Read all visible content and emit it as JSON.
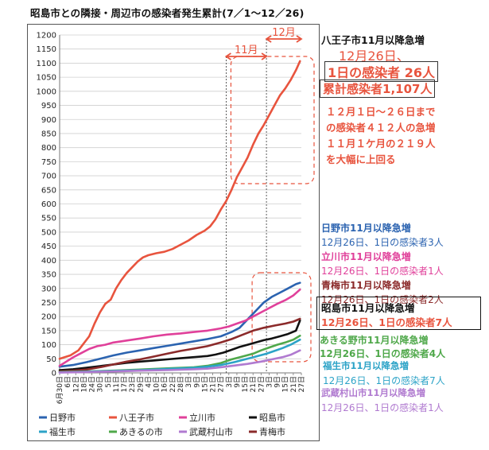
{
  "title": "昭島市との隣接・周辺市の感染者発生累計(7／1～12／26)",
  "chart_data": {
    "type": "line",
    "ylim": [
      0,
      1200
    ],
    "yticks": [
      0,
      50,
      100,
      150,
      200,
      250,
      300,
      350,
      400,
      450,
      500,
      550,
      600,
      650,
      700,
      750,
      800,
      850,
      900,
      950,
      1000,
      1050,
      1100,
      1150,
      1200
    ],
    "xlim": [
      0,
      180
    ],
    "x_tick_labels": [
      {
        "x": 0,
        "label": "6月30日"
      },
      {
        "x": 6,
        "label": "6日"
      },
      {
        "x": 12,
        "label": "12日"
      },
      {
        "x": 18,
        "label": "18日"
      },
      {
        "x": 24,
        "label": "24日"
      },
      {
        "x": 30,
        "label": "30日"
      },
      {
        "x": 36,
        "label": "5日"
      },
      {
        "x": 42,
        "label": "11日"
      },
      {
        "x": 48,
        "label": "17日"
      },
      {
        "x": 54,
        "label": "23日"
      },
      {
        "x": 60,
        "label": "29日"
      },
      {
        "x": 66,
        "label": "4日"
      },
      {
        "x": 72,
        "label": "10日"
      },
      {
        "x": 78,
        "label": "16日"
      },
      {
        "x": 84,
        "label": "22日"
      },
      {
        "x": 90,
        "label": "28日"
      },
      {
        "x": 96,
        "label": "3日"
      },
      {
        "x": 102,
        "label": "9日"
      },
      {
        "x": 108,
        "label": "15日"
      },
      {
        "x": 114,
        "label": "21日"
      },
      {
        "x": 120,
        "label": "27日"
      },
      {
        "x": 126,
        "label": "3日"
      },
      {
        "x": 132,
        "label": "9日"
      },
      {
        "x": 138,
        "label": "15日"
      },
      {
        "x": 144,
        "label": "21日"
      },
      {
        "x": 150,
        "label": "27日"
      },
      {
        "x": 156,
        "label": "3日"
      },
      {
        "x": 162,
        "label": "9日"
      },
      {
        "x": 168,
        "label": "15日"
      },
      {
        "x": 174,
        "label": "21日"
      },
      {
        "x": 180,
        "label": "27日"
      }
    ],
    "month_brackets": [
      {
        "label": "11月",
        "x_start": 124,
        "x_end": 154
      },
      {
        "label": "12月",
        "x_start": 154,
        "x_end": 180
      }
    ],
    "series": [
      {
        "name": "八王子市",
        "color": "#e8543e",
        "points": [
          [
            0,
            50
          ],
          [
            8,
            62
          ],
          [
            14,
            80
          ],
          [
            18,
            105
          ],
          [
            22,
            130
          ],
          [
            26,
            175
          ],
          [
            30,
            215
          ],
          [
            34,
            245
          ],
          [
            38,
            260
          ],
          [
            42,
            300
          ],
          [
            46,
            330
          ],
          [
            50,
            355
          ],
          [
            54,
            375
          ],
          [
            58,
            395
          ],
          [
            62,
            410
          ],
          [
            66,
            418
          ],
          [
            72,
            425
          ],
          [
            78,
            430
          ],
          [
            84,
            440
          ],
          [
            90,
            455
          ],
          [
            96,
            470
          ],
          [
            102,
            490
          ],
          [
            108,
            505
          ],
          [
            112,
            520
          ],
          [
            116,
            545
          ],
          [
            120,
            580
          ],
          [
            124,
            610
          ],
          [
            128,
            650
          ],
          [
            132,
            695
          ],
          [
            136,
            730
          ],
          [
            140,
            765
          ],
          [
            144,
            810
          ],
          [
            148,
            850
          ],
          [
            152,
            880
          ],
          [
            156,
            915
          ],
          [
            160,
            950
          ],
          [
            164,
            985
          ],
          [
            168,
            1010
          ],
          [
            172,
            1040
          ],
          [
            176,
            1075
          ],
          [
            179,
            1107
          ]
        ]
      },
      {
        "name": "日野市",
        "color": "#2b63b0",
        "points": [
          [
            0,
            22
          ],
          [
            10,
            28
          ],
          [
            20,
            38
          ],
          [
            30,
            50
          ],
          [
            40,
            62
          ],
          [
            50,
            72
          ],
          [
            60,
            80
          ],
          [
            70,
            88
          ],
          [
            80,
            96
          ],
          [
            90,
            104
          ],
          [
            100,
            112
          ],
          [
            110,
            120
          ],
          [
            120,
            130
          ],
          [
            128,
            145
          ],
          [
            134,
            160
          ],
          [
            140,
            190
          ],
          [
            146,
            220
          ],
          [
            152,
            250
          ],
          [
            158,
            270
          ],
          [
            164,
            285
          ],
          [
            170,
            300
          ],
          [
            176,
            315
          ],
          [
            179,
            320
          ]
        ]
      },
      {
        "name": "立川市",
        "color": "#e0409a",
        "points": [
          [
            0,
            25
          ],
          [
            5,
            40
          ],
          [
            10,
            55
          ],
          [
            16,
            70
          ],
          [
            22,
            85
          ],
          [
            28,
            95
          ],
          [
            34,
            100
          ],
          [
            40,
            108
          ],
          [
            50,
            115
          ],
          [
            60,
            122
          ],
          [
            70,
            130
          ],
          [
            80,
            136
          ],
          [
            90,
            140
          ],
          [
            100,
            145
          ],
          [
            110,
            150
          ],
          [
            120,
            158
          ],
          [
            126,
            165
          ],
          [
            132,
            175
          ],
          [
            138,
            185
          ],
          [
            144,
            200
          ],
          [
            150,
            215
          ],
          [
            156,
            230
          ],
          [
            162,
            245
          ],
          [
            168,
            258
          ],
          [
            174,
            275
          ],
          [
            179,
            296
          ]
        ]
      },
      {
        "name": "昭島市",
        "color": "#111111",
        "points": [
          [
            0,
            10
          ],
          [
            10,
            13
          ],
          [
            20,
            18
          ],
          [
            30,
            24
          ],
          [
            40,
            30
          ],
          [
            50,
            36
          ],
          [
            60,
            40
          ],
          [
            70,
            44
          ],
          [
            80,
            48
          ],
          [
            90,
            52
          ],
          [
            100,
            56
          ],
          [
            110,
            60
          ],
          [
            116,
            65
          ],
          [
            122,
            72
          ],
          [
            128,
            82
          ],
          [
            134,
            92
          ],
          [
            140,
            100
          ],
          [
            146,
            108
          ],
          [
            152,
            116
          ],
          [
            158,
            122
          ],
          [
            164,
            130
          ],
          [
            170,
            138
          ],
          [
            176,
            150
          ],
          [
            179,
            186
          ]
        ]
      },
      {
        "name": "青梅市",
        "color": "#8b2a2a",
        "points": [
          [
            0,
            5
          ],
          [
            10,
            8
          ],
          [
            20,
            12
          ],
          [
            30,
            20
          ],
          [
            40,
            30
          ],
          [
            50,
            40
          ],
          [
            60,
            48
          ],
          [
            70,
            58
          ],
          [
            80,
            68
          ],
          [
            90,
            78
          ],
          [
            100,
            86
          ],
          [
            110,
            95
          ],
          [
            120,
            108
          ],
          [
            128,
            120
          ],
          [
            136,
            135
          ],
          [
            144,
            150
          ],
          [
            152,
            160
          ],
          [
            160,
            168
          ],
          [
            168,
            175
          ],
          [
            174,
            182
          ],
          [
            179,
            192
          ]
        ]
      },
      {
        "name": "あきるの市",
        "color": "#4fa84a",
        "points": [
          [
            0,
            3
          ],
          [
            20,
            5
          ],
          [
            40,
            8
          ],
          [
            60,
            12
          ],
          [
            80,
            16
          ],
          [
            100,
            20
          ],
          [
            110,
            25
          ],
          [
            120,
            35
          ],
          [
            128,
            48
          ],
          [
            136,
            58
          ],
          [
            144,
            68
          ],
          [
            150,
            80
          ],
          [
            156,
            90
          ],
          [
            162,
            100
          ],
          [
            168,
            108
          ],
          [
            174,
            118
          ],
          [
            179,
            132
          ]
        ]
      },
      {
        "name": "福生市",
        "color": "#2ca3c7",
        "points": [
          [
            0,
            2
          ],
          [
            20,
            4
          ],
          [
            40,
            7
          ],
          [
            60,
            10
          ],
          [
            80,
            14
          ],
          [
            100,
            18
          ],
          [
            110,
            22
          ],
          [
            120,
            28
          ],
          [
            130,
            38
          ],
          [
            138,
            48
          ],
          [
            146,
            58
          ],
          [
            154,
            68
          ],
          [
            160,
            78
          ],
          [
            166,
            88
          ],
          [
            172,
            100
          ],
          [
            179,
            118
          ]
        ]
      },
      {
        "name": "武蔵村山市",
        "color": "#b07ad0",
        "points": [
          [
            0,
            1
          ],
          [
            20,
            3
          ],
          [
            40,
            5
          ],
          [
            60,
            8
          ],
          [
            80,
            10
          ],
          [
            100,
            13
          ],
          [
            110,
            15
          ],
          [
            120,
            20
          ],
          [
            130,
            26
          ],
          [
            140,
            32
          ],
          [
            150,
            40
          ],
          [
            158,
            48
          ],
          [
            166,
            56
          ],
          [
            172,
            64
          ],
          [
            179,
            80
          ]
        ]
      }
    ]
  },
  "legend": [
    {
      "name": "日野市",
      "color": "#2b63b0"
    },
    {
      "name": "八王子市",
      "color": "#e8543e"
    },
    {
      "name": "立川市",
      "color": "#e0409a"
    },
    {
      "name": "昭島市",
      "color": "#111111"
    },
    {
      "name": "福生市",
      "color": "#2ca3c7"
    },
    {
      "name": "あきるの市",
      "color": "#4fa84a"
    },
    {
      "name": "武蔵村山市",
      "color": "#b07ad0"
    },
    {
      "name": "青梅市",
      "color": "#8b2a2a"
    }
  ],
  "annotations": {
    "hachioji_head": "八王子市11月以降急増",
    "hachioji_date": "12月26日、",
    "hachioji_daily": "1日の感染者 26人",
    "hachioji_total": "累計感染者1,107人",
    "hachioji_note1": "１２月１日～２６日まで",
    "hachioji_note2": "の感染者４１２人の急増",
    "hachioji_note3": "１１月１ケ月の２１９人",
    "hachioji_note4": "を大幅に上回る",
    "hino_head": "日野市11月以降急増",
    "hino_daily": "12月26日、1日の感染者3人",
    "tachikawa_head": "立川市11月以降急増",
    "tachikawa_daily": "12月26日、1日の感染者1人",
    "ome_head": "青梅市11月以降急増",
    "ome_daily": "12月26日、1日の感染者2人",
    "akishima_head": "昭島市11月以降急増",
    "akishima_daily": "12月26日、1日の感染者7人",
    "akiruno_head": "あきる野市11月以降急増",
    "akiruno_daily": "12月26日、1日の感染者4人",
    "fussa_head": "福生市11月以降急増",
    "fussa_daily": "12月26日、1日の感染者7人",
    "musashimurayama_head": "武蔵村山市11月以降急増",
    "musashimurayama_daily": "12月26日、1日の感染者1人"
  }
}
